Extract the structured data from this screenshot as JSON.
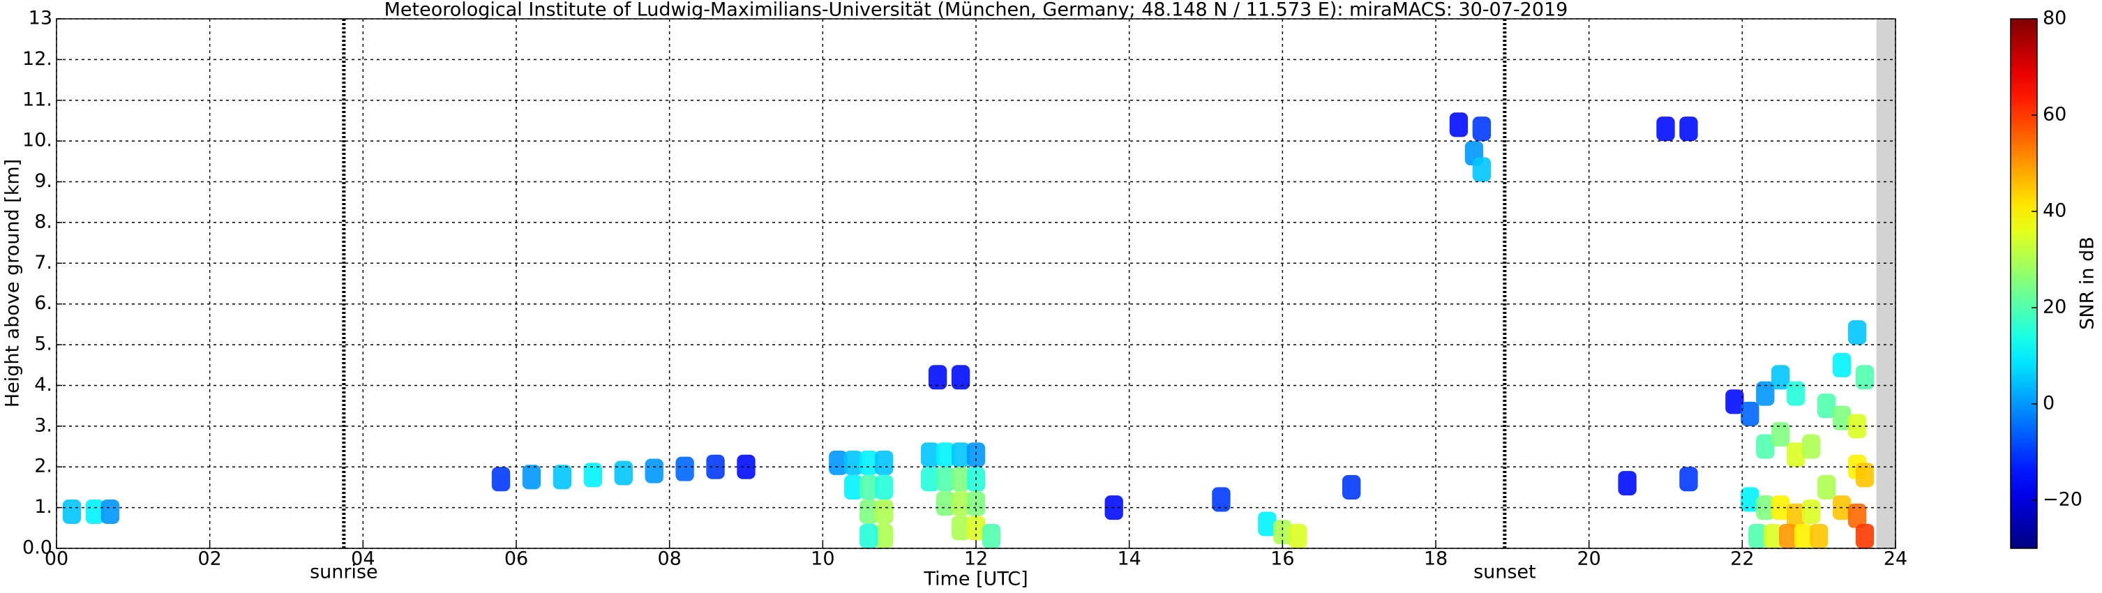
{
  "chart_data": {
    "type": "heatmap",
    "title": "Meteorological Institute of Ludwig-Maximilians-Universität (München, Germany; 48.148 N / 11.573 E):    miraMACS: 30-07-2019",
    "x_label": "Time [UTC]",
    "y_label": "Height above ground [km]",
    "xlim": [
      0,
      24
    ],
    "ylim": [
      0,
      13
    ],
    "xticks": [
      {
        "value": 0,
        "label": "00"
      },
      {
        "value": 2,
        "label": "02"
      },
      {
        "value": 4,
        "label": "04"
      },
      {
        "value": 6,
        "label": "06"
      },
      {
        "value": 8,
        "label": "08"
      },
      10,
      12,
      14,
      16,
      18,
      20,
      22,
      24
    ],
    "yticks": [
      {
        "value": 0,
        "label": "0.0"
      },
      {
        "value": 1,
        "label": "1."
      },
      {
        "value": 2,
        "label": "2."
      },
      {
        "value": 3,
        "label": "3."
      },
      {
        "value": 4,
        "label": "4."
      },
      {
        "value": 5,
        "label": "5."
      },
      {
        "value": 6,
        "label": "6."
      },
      {
        "value": 7,
        "label": "7."
      },
      {
        "value": 8,
        "label": "8."
      },
      {
        "value": 9,
        "label": "9."
      },
      {
        "value": 10,
        "label": "10."
      },
      {
        "value": 11,
        "label": "11."
      },
      {
        "value": 12,
        "label": "12."
      },
      13
    ],
    "grid": true,
    "gap": [
      23.75,
      24
    ],
    "annotations": [
      {
        "x": 3.75,
        "label": "sunrise"
      },
      {
        "x": 18.9,
        "label": "sunset"
      }
    ],
    "cells": {
      "x": [
        0.2,
        0.5,
        0.7,
        5.8,
        6.2,
        6.6,
        7.0,
        7.4,
        7.8,
        8.2,
        8.6,
        9.0,
        10.2,
        10.4,
        10.6,
        10.8,
        10.4,
        10.6,
        10.8,
        10.6,
        10.8,
        10.8,
        10.6,
        11.4,
        11.6,
        11.8,
        12.0,
        11.4,
        11.6,
        11.8,
        12.0,
        11.6,
        11.8,
        12.0,
        11.8,
        12.0,
        12.2,
        11.5,
        11.8,
        13.8,
        15.2,
        15.8,
        16.0,
        16.2,
        16.9,
        18.3,
        18.6,
        18.5,
        18.6,
        21.0,
        21.3,
        21.9,
        22.1,
        22.3,
        22.5,
        22.7,
        22.3,
        22.5,
        22.7,
        22.9,
        22.1,
        22.3,
        22.5,
        22.7,
        22.9,
        22.2,
        22.4,
        22.6,
        22.8,
        23.0,
        23.1,
        23.1,
        23.3,
        23.5,
        23.3,
        23.5,
        23.5,
        23.3,
        23.5,
        23.6,
        23.6,
        23.6,
        20.5,
        21.3
      ],
      "y": [
        0.9,
        0.9,
        0.9,
        1.7,
        1.75,
        1.75,
        1.8,
        1.85,
        1.9,
        1.95,
        2.0,
        2.0,
        2.1,
        2.1,
        2.1,
        2.1,
        1.5,
        1.5,
        1.5,
        0.9,
        0.9,
        0.3,
        0.3,
        2.3,
        2.3,
        2.3,
        2.3,
        1.7,
        1.7,
        1.7,
        1.7,
        1.1,
        1.1,
        1.1,
        0.5,
        0.5,
        0.3,
        4.2,
        4.2,
        1.0,
        1.2,
        0.6,
        0.4,
        0.3,
        1.5,
        10.4,
        10.3,
        9.7,
        9.3,
        10.3,
        10.3,
        3.6,
        3.3,
        3.8,
        4.2,
        3.8,
        2.5,
        2.8,
        2.3,
        2.5,
        1.2,
        1.0,
        1.0,
        0.8,
        0.9,
        0.3,
        0.3,
        0.3,
        0.3,
        0.3,
        1.5,
        3.5,
        4.5,
        5.3,
        3.2,
        3.0,
        2.0,
        1.0,
        0.8,
        0.3,
        1.8,
        4.2,
        1.6,
        1.7
      ],
      "values": [
        5,
        10,
        0,
        -10,
        0,
        5,
        10,
        5,
        0,
        -5,
        -10,
        -15,
        0,
        5,
        10,
        5,
        10,
        20,
        15,
        25,
        30,
        30,
        15,
        5,
        10,
        5,
        0,
        15,
        20,
        25,
        15,
        25,
        30,
        25,
        30,
        35,
        20,
        -15,
        -15,
        -15,
        -10,
        10,
        30,
        35,
        -10,
        -15,
        -10,
        0,
        5,
        -15,
        -15,
        -15,
        -5,
        0,
        5,
        15,
        20,
        25,
        35,
        30,
        10,
        25,
        40,
        45,
        35,
        20,
        35,
        50,
        40,
        45,
        30,
        20,
        10,
        5,
        25,
        35,
        40,
        45,
        55,
        60,
        45,
        20,
        -15,
        -10
      ]
    },
    "colorbar": {
      "label": "SNR in dB",
      "lim": [
        -30,
        80
      ],
      "ticks": [
        {
          "value": -20,
          "label": "−20"
        },
        0,
        20,
        40,
        60,
        80
      ]
    }
  }
}
